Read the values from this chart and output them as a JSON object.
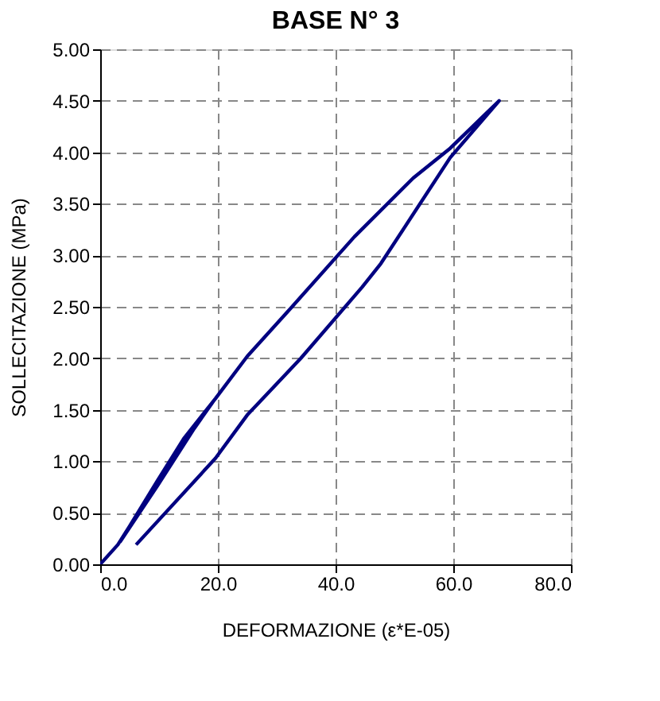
{
  "chart_data": {
    "type": "line",
    "title": "BASE N° 3",
    "xlabel": "DEFORMAZIONE (ε*E-05)",
    "ylabel": "SOLLECITAZIONE (MPa)",
    "x": [
      0,
      3,
      7,
      13.3,
      19.2,
      16,
      9.7,
      3.4,
      9.7,
      14.2,
      19.6,
      25,
      32.3,
      43.2,
      53.2,
      59.5,
      67.8,
      59.5,
      47.7,
      44.5,
      34.1,
      25,
      19.6,
      6.1
    ],
    "series": [
      {
        "color": "#000080",
        "values": [
          0,
          0.19,
          0.55,
          1.12,
          1.58,
          1.32,
          0.76,
          0.22,
          0.81,
          1.22,
          1.61,
          2.02,
          2.48,
          3.18,
          3.75,
          4.04,
          4.5,
          3.95,
          2.92,
          2.69,
          2.0,
          1.45,
          1.03,
          0.19
        ]
      }
    ],
    "xlim": [
      0,
      80
    ],
    "xticks": [
      {
        "value": 0,
        "label": "0.0"
      },
      {
        "value": 20,
        "label": "20.0"
      },
      {
        "value": 40,
        "label": "40.0"
      },
      {
        "value": 60,
        "label": "60.0"
      },
      {
        "value": 80,
        "label": "80.0"
      }
    ],
    "ylim": [
      0,
      5
    ],
    "yticks": [
      {
        "value": 0,
        "label": "0.00"
      },
      {
        "value": 0.5,
        "label": "0.50"
      },
      {
        "value": 1,
        "label": "1.00"
      },
      {
        "value": 1.5,
        "label": "1.50"
      },
      {
        "value": 2,
        "label": "2.00"
      },
      {
        "value": 2.5,
        "label": "2.50"
      },
      {
        "value": 3,
        "label": "3.00"
      },
      {
        "value": 3.5,
        "label": "3.50"
      },
      {
        "value": 4,
        "label": "4.00"
      },
      {
        "value": 4.5,
        "label": "4.50"
      },
      {
        "value": 5,
        "label": "5.00"
      }
    ],
    "grid": true,
    "marker": "none",
    "line_style": "solid"
  }
}
